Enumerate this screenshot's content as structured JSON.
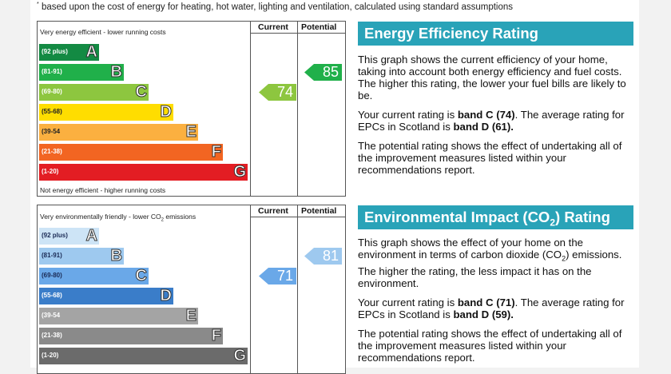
{
  "footnote": "based upon the cost of energy for heating, hot water, lighting and ventilation, calculated using standard assumptions",
  "energy": {
    "col_current": "Current",
    "col_potential": "Potential",
    "caption_top": "Very energy efficient - lower running costs",
    "caption_bottom": "Not energy efficient - higher running costs",
    "bands": [
      {
        "range": "(92 plus)",
        "letter": "A",
        "color": "#138a43"
      },
      {
        "range": "(81-91)",
        "letter": "B",
        "color": "#20b04a"
      },
      {
        "range": "(69-80)",
        "letter": "C",
        "color": "#8dc63f"
      },
      {
        "range": "(55-68)",
        "letter": "D",
        "color": "#ffdd00"
      },
      {
        "range": "(39-54",
        "letter": "E",
        "color": "#fbb040"
      },
      {
        "range": "(21-38)",
        "letter": "F",
        "color": "#f26522"
      },
      {
        "range": "(1-20)",
        "letter": "G",
        "color": "#e31d23"
      }
    ],
    "current": {
      "value": "74",
      "band": "C",
      "color": "#8dc63f"
    },
    "potential": {
      "value": "85",
      "band": "B",
      "color": "#20b04a"
    },
    "title": "Energy Efficiency Rating",
    "p1": "This graph shows the current efficiency of your home, taking into account both energy efficiency and fuel costs. The higher this rating, the lower your fuel bills are likely to be.",
    "p2_a": "Your current rating is ",
    "p2_b": "band C (74)",
    "p2_c": ". The average rating for EPCs in Scotland is ",
    "p2_d": "band D (61).",
    "p3": "The potential rating shows the effect of undertaking all of the improvement measures listed within your recommendations report."
  },
  "environment": {
    "col_current": "Current",
    "col_potential": "Potential",
    "caption_top_a": "Very environmentally friendly - lower CO",
    "caption_top_sub": "2",
    "caption_top_b": " emissions",
    "bands": [
      {
        "range": "(92 plus)",
        "letter": "A",
        "color": "#cde4f6"
      },
      {
        "range": "(81-91)",
        "letter": "B",
        "color": "#9ec9ef"
      },
      {
        "range": "(69-80)",
        "letter": "C",
        "color": "#6aa8e8"
      },
      {
        "range": "(55-68)",
        "letter": "D",
        "color": "#3a7dc9"
      },
      {
        "range": "(39-54",
        "letter": "E",
        "color": "#a4a4a4"
      },
      {
        "range": "(21-38)",
        "letter": "F",
        "color": "#8a8a8a"
      },
      {
        "range": "(1-20)",
        "letter": "G",
        "color": "#6b6b6b"
      }
    ],
    "current": {
      "value": "71",
      "band": "C",
      "color": "#6aa8e8"
    },
    "potential": {
      "value": "81",
      "band": "B",
      "color": "#9ec9ef"
    },
    "title_a": "Environmental Impact (CO",
    "title_sub": "2",
    "title_b": ") Rating",
    "p1_a": "This graph shows the effect of your home on the environment in terms of carbon dioxide (CO",
    "p1_sub": "2",
    "p1_b": ") emissions. The higher the rating, the less impact it has on the environment.",
    "p2_a": "Your current rating is ",
    "p2_b": "band C (71)",
    "p2_c": ". The average rating for EPCs in Scotland is ",
    "p2_d": "band D (59).",
    "p3": "The potential rating shows the effect of undertaking all of the improvement measures listed within your recommendations report."
  }
}
